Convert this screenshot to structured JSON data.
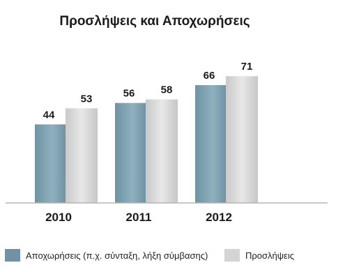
{
  "chart_data": {
    "type": "bar",
    "title": "Προσλήψεις και Αποχωρήσεις",
    "categories": [
      "2010",
      "2011",
      "2012"
    ],
    "series": [
      {
        "name": "Αποχωρήσεις (π.χ. σύνταξη, λήξη σύμβασης)",
        "values": [
          44,
          56,
          66
        ],
        "color": "#7b9fae"
      },
      {
        "name": "Προσλήψεις",
        "values": [
          53,
          58,
          71
        ],
        "color": "#d3d3d3"
      }
    ],
    "ylim": [
      0,
      80
    ],
    "grid": false,
    "legend_position": "bottom",
    "data_labels": true,
    "baseline_color": "#b5b5b5"
  }
}
